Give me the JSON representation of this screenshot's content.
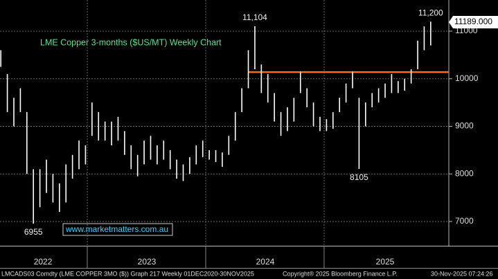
{
  "chart_data": {
    "type": "range-bar",
    "title": "LME Copper 3-months ($US/MT) Weekly Chart",
    "watermark": "www.marketmatters.com.au",
    "x": [
      2022.27,
      2022.325,
      2022.38,
      2022.435,
      2022.49,
      2022.545,
      2022.6,
      2022.655,
      2022.71,
      2022.765,
      2022.82,
      2022.875,
      2022.93,
      2022.985,
      2023.04,
      2023.095,
      2023.15,
      2023.205,
      2023.26,
      2023.315,
      2023.37,
      2023.425,
      2023.48,
      2023.535,
      2023.59,
      2023.645,
      2023.7,
      2023.755,
      2023.81,
      2023.865,
      2023.92,
      2023.975,
      2024.03,
      2024.085,
      2024.14,
      2024.195,
      2024.25,
      2024.305,
      2024.36,
      2024.415,
      2024.47,
      2024.525,
      2024.58,
      2024.635,
      2024.69,
      2024.745,
      2024.8,
      2024.855,
      2024.91,
      2024.965,
      2025.02,
      2025.075,
      2025.13,
      2025.185,
      2025.24,
      2025.295,
      2025.35,
      2025.405,
      2025.46,
      2025.515,
      2025.57,
      2025.625,
      2025.68,
      2025.735,
      2025.79,
      2025.845,
      2025.9
    ],
    "low": [
      10250,
      9300,
      9000,
      9300,
      8000,
      6955,
      7300,
      7600,
      7400,
      7200,
      7400,
      7900,
      8100,
      8200,
      8800,
      8700,
      8700,
      8600,
      8700,
      8400,
      8100,
      7950,
      8200,
      8300,
      8200,
      8300,
      8100,
      7900,
      7850,
      8000,
      8200,
      8350,
      8300,
      8250,
      8150,
      8400,
      8700,
      9300,
      9800,
      10200,
      9700,
      9500,
      9100,
      8800,
      8900,
      9100,
      9700,
      9400,
      9000,
      8900,
      8900,
      8950,
      9300,
      9500,
      9800,
      8105,
      9000,
      9400,
      9500,
      9600,
      9700,
      9700,
      9750,
      9900,
      10200,
      10600,
      10700
    ],
    "high": [
      10600,
      10100,
      9600,
      9800,
      9300,
      8100,
      8100,
      8300,
      8000,
      7800,
      8200,
      8400,
      8700,
      8600,
      9500,
      9300,
      9100,
      9100,
      9200,
      8900,
      8600,
      8400,
      8700,
      8800,
      8600,
      8700,
      8500,
      8300,
      8200,
      8350,
      8600,
      8700,
      8500,
      8500,
      8450,
      8800,
      9300,
      9800,
      10600,
      11104,
      10300,
      10100,
      9700,
      9300,
      9400,
      9600,
      10150,
      9800,
      9500,
      9200,
      9150,
      9300,
      9600,
      9900,
      10150,
      9600,
      9500,
      9700,
      9800,
      9900,
      10100,
      9950,
      10000,
      10200,
      10800,
      11100,
      11200
    ],
    "color": "#ffffff",
    "resistance": {
      "value": 10140,
      "color": "#ff6a13"
    },
    "annotations": [
      {
        "label": "11,104",
        "value": 11104,
        "x": 2024.415,
        "position": "above"
      },
      {
        "label": "11,200",
        "value": 11200,
        "x": 2025.9,
        "position": "above"
      },
      {
        "label": "6955",
        "value": 6955,
        "x": 2022.545,
        "position": "below"
      },
      {
        "label": "8105",
        "value": 8105,
        "x": 2025.295,
        "position": "below"
      }
    ],
    "last_price": {
      "value": 11189,
      "label": "11189.000"
    },
    "xlim": [
      2022.263,
      2026.053
    ],
    "xticks": [
      {
        "value": 2022.626,
        "label": "2022"
      },
      {
        "value": 2023.503,
        "label": "2023"
      },
      {
        "value": 2024.503,
        "label": "2024"
      },
      {
        "value": 2025.515,
        "label": "2025"
      }
    ],
    "ylim": [
      6490,
      11655
    ],
    "yticks": [
      7000,
      8000,
      9000,
      10000,
      11000
    ],
    "grid": true,
    "footer": [
      "LMCADS03 Comdty (LME COPPER",
      "3MO ($))  Graph 217 Weekly 01DEC2020-30NOV2025",
      "Copyright® 2025 Bloomberg Finance L.P.",
      "30-Nov-2025 07:24:26"
    ]
  }
}
